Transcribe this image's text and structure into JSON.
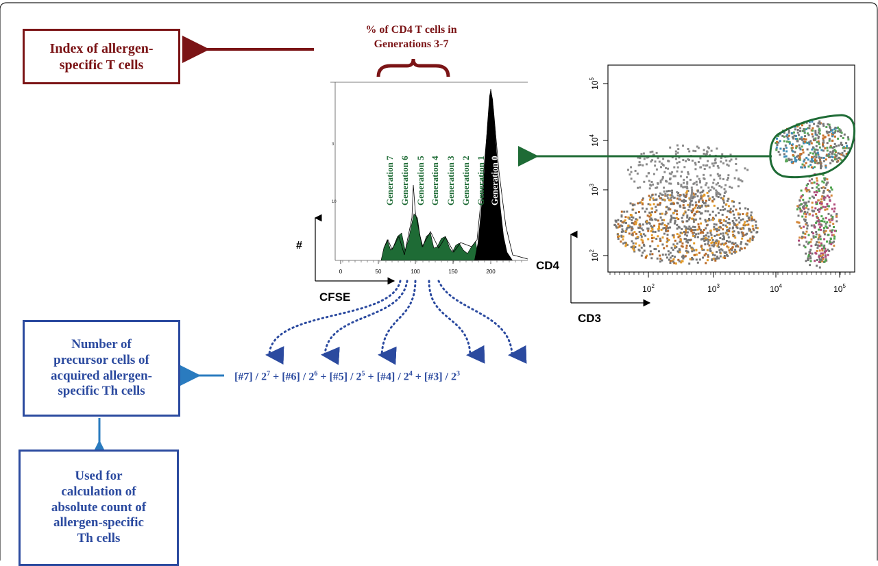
{
  "index_box": {
    "line1": "Index of allergen-",
    "line2": "specific T cells"
  },
  "brace_label": {
    "line1": "% of CD4 T cells in",
    "line2": "Generations 3-7"
  },
  "precursor_box": {
    "line1": "Number of",
    "line2": "precursor cells of",
    "line3": "acquired allergen-",
    "line4": "specific Th cells"
  },
  "absolute_box": {
    "line1": "Used for",
    "line2": "calculation of",
    "line3": "absolute count of",
    "line4": "allergen-specific",
    "line5": "Th cells"
  },
  "histogram": {
    "x_axis_label": "CFSE",
    "y_axis_label": "#",
    "x_ticks": [
      "0",
      "50",
      "100",
      "150",
      "200"
    ],
    "generations": [
      "Generation 7",
      "Generation 6",
      "Generation 5",
      "Generation 4",
      "Generation 3",
      "Generation 2",
      "Generation 1",
      "Generation 0"
    ],
    "green": "#1e6b35",
    "black": "#000000"
  },
  "dotplot": {
    "x_axis_label": "CD3",
    "y_axis_label": "CD4",
    "x_ticks": [
      "10",
      "10",
      "10",
      "10"
    ],
    "x_exps": [
      "2",
      "3",
      "4",
      "5"
    ],
    "y_ticks": [
      "10",
      "10",
      "10",
      "10"
    ],
    "y_exps": [
      "2",
      "3",
      "4",
      "5"
    ],
    "gate_color": "#1e6b35"
  },
  "formula": {
    "t1": "[#7] / 2",
    "e1": "7",
    "t2": " + [#6] / 2",
    "e2": "6",
    "t3": " + [#5] / 2",
    "e3": "5",
    "t4": " + [#4] / 2",
    "e4": "4",
    "t5": " + [#3] / 2",
    "e5": "3"
  },
  "colors": {
    "red": "#7b1416",
    "blue": "#2b4a9f",
    "arrow_blue": "#2a7bbf",
    "green": "#1e6b35"
  }
}
